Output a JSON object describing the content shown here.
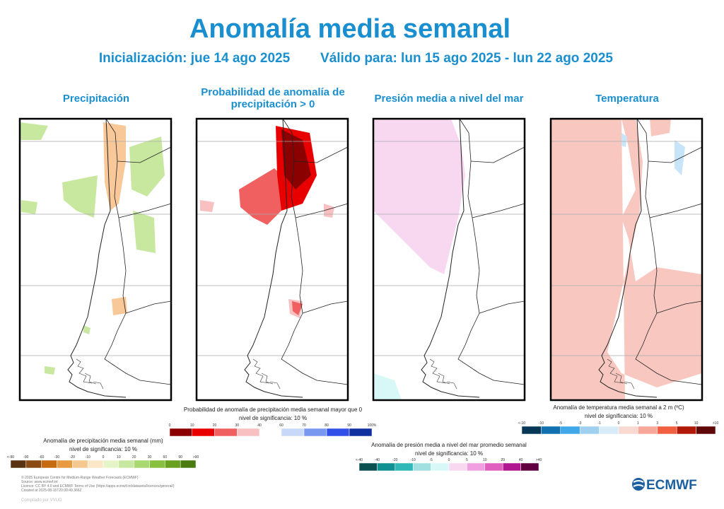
{
  "header": {
    "title": "Anomalía media semanal",
    "initialization": "Inicialización: jue 14 ago 2025",
    "valid": "Válido para: lun 15 ago 2025 - lun 22 ago 2025"
  },
  "panels": [
    {
      "title": "Precipitación"
    },
    {
      "title": "Probabilidad de anomalía de precipitación > 0"
    },
    {
      "title": "Presión media a nivel del mar"
    },
    {
      "title": "Temperatura"
    }
  ],
  "legends": [
    {
      "title": "Anomalía de precipitación media semanal (mm)",
      "subtitle": "nivel de significancia: 10 %",
      "bars": [
        {
          "colors": [
            "#5a3210",
            "#8a4a12",
            "#c66a10",
            "#e89a40",
            "#f5c890",
            "#fbe6c8",
            "#e6f5c8",
            "#c8e8a0",
            "#a8d870",
            "#88c040",
            "#68a020",
            "#4a7a10"
          ],
          "labels": [
            "<-90",
            "-90",
            "-60",
            "-30",
            "-20",
            "-10",
            "0",
            "10",
            "20",
            "30",
            "60",
            "90",
            ">90"
          ]
        }
      ]
    },
    {
      "title": "Probabilidad de anomalía de precipitación media semanal mayor que 0",
      "subtitle": "nivel de significancia: 10 %",
      "bars": [
        {
          "colors": [
            "#8b0000",
            "#e80000",
            "#f06060",
            "#f8c0c0"
          ],
          "labels": [
            "0",
            "10",
            "20",
            "30",
            "40"
          ]
        },
        {
          "colors": [
            "#c8d8f8",
            "#7898f0",
            "#3050e8",
            "#1030a0"
          ],
          "labels": [
            "60",
            "70",
            "80",
            "90",
            "100%"
          ]
        }
      ]
    },
    {
      "title": "Anomalía de presión media a nivel del mar promedio semanal",
      "subtitle": "nivel de significancia: 10 %",
      "bars": [
        {
          "colors": [
            "#0a5050",
            "#109090",
            "#30b8b8",
            "#a0e0e0",
            "#d8f8f8",
            "#f8d8f0",
            "#f0a0e0",
            "#e060c0",
            "#b01890",
            "#600040"
          ],
          "labels": [
            "<-40",
            "-40",
            "-20",
            "-10",
            "-5",
            "0",
            "5",
            "10",
            "20",
            "40",
            ">40"
          ]
        }
      ]
    },
    {
      "title": "Anomalía de temperatura media semanal a 2 m (ºC)",
      "subtitle": "nivel de significancia: 10 %",
      "bars": [
        {
          "colors": [
            "#083858",
            "#1070b0",
            "#40a8e8",
            "#a0d0f0",
            "#d8ecf8",
            "#f8d8d0",
            "#f8a898",
            "#f06040",
            "#b01808",
            "#600808"
          ],
          "labels": [
            "<-10",
            "-10",
            "-5",
            "-3",
            "-1",
            "0",
            "1",
            "3",
            "5",
            "10",
            ">10"
          ]
        }
      ]
    }
  ],
  "footer": {
    "lines": [
      "© 2025 European Centre for Medium-Range Weather Forecasts (ECMWF)",
      "Source: www.ecmwf.int",
      "Licence: CC BY 4.0 and ECMWF Terms of Use (https://apps.ecmwf.int/datasets/licences/general/)",
      "Created at 2025-08-15T20:00:49.366Z"
    ],
    "compiled": "Compilado por VVUG",
    "logo": "ECMWF"
  }
}
